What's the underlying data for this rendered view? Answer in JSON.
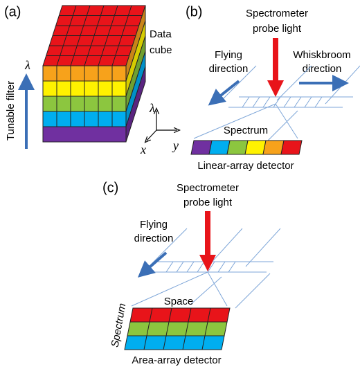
{
  "panel_a": {
    "label": "(a)",
    "cube_label": [
      "Data",
      "cube"
    ],
    "filter_label": "Tunable filter",
    "filter_symbol": "λ",
    "axes": {
      "lambda": "λ",
      "x": "x",
      "y": "y"
    }
  },
  "panel_b": {
    "label": "(b)",
    "light_label": [
      "Spectrometer",
      "probe light"
    ],
    "flying_label": [
      "Flying",
      "direction"
    ],
    "whiskbroom_label": [
      "Whiskbroom",
      "direction"
    ],
    "spectrum_label": "Spectrum",
    "detector_label": "Linear-array detector"
  },
  "panel_c": {
    "label": "(c)",
    "light_label": [
      "Spectrometer",
      "probe light"
    ],
    "flying_label": [
      "Flying",
      "direction"
    ],
    "space_label": "Space",
    "spectrum_label": "Spectrum",
    "detector_label": "Area-array detector"
  }
}
